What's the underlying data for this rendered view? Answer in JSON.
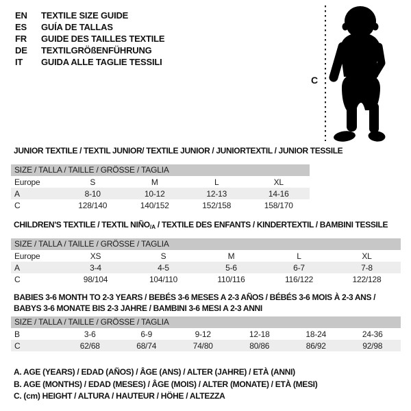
{
  "page": {
    "background": "#ffffff",
    "text_color": "#111111",
    "header_bar_color": "#c7c7c7",
    "stripe_row_color": "#ededed",
    "silhouette_color": "#000000"
  },
  "language_guide": {
    "items": [
      {
        "code": "EN",
        "label": "TEXTILE SIZE GUIDE"
      },
      {
        "code": "ES",
        "label": "GUÍA DE TALLAS"
      },
      {
        "code": "FR",
        "label": "GUIDE DES TAILLES TEXTILE"
      },
      {
        "code": "DE",
        "label": "TEXTILGRÖßENFÜHRUNG"
      },
      {
        "code": "IT",
        "label": "GUIDA ALLE TAGLIE TESSILI"
      }
    ]
  },
  "figure": {
    "icon": "baby-silhouette",
    "measure_label": "C"
  },
  "tables": [
    {
      "title": "JUNIOR TEXTILE / TEXTIL JUNIOR/ TEXTILE JUNIOR / JUNIORTEXTIL / JUNIOR TESSILE",
      "size_header": "SIZE / TALLA / TAILLE / GRÖSSE / TAGLIA",
      "rows": [
        {
          "label": "Europe",
          "values": [
            "S",
            "M",
            "L",
            "XL"
          ]
        },
        {
          "label": "A",
          "values": [
            "8-10",
            "10-12",
            "12-13",
            "14-16"
          ]
        },
        {
          "label": "C",
          "values": [
            "128/140",
            "140/152",
            "152/158",
            "158/170"
          ]
        }
      ]
    },
    {
      "title_parts": {
        "before": "CHILDREN'S TEXTILE / TEXTIL NIÑO",
        "sub": "/A",
        "after": " / TEXTILE DES ENFANTS / KINDERTEXTIL / BAMBINI TESSILE"
      },
      "size_header": "SIZE / TALLA / TAILLE / GRÖSSE / TAGLIA",
      "rows": [
        {
          "label": "Europe",
          "values": [
            "XS",
            "S",
            "M",
            "L",
            "XL"
          ]
        },
        {
          "label": "A",
          "values": [
            "3-4",
            "4-5",
            "5-6",
            "6-7",
            "7-8"
          ]
        },
        {
          "label": "C",
          "values": [
            "98/104",
            "104/110",
            "110/116",
            "116/122",
            "122/128"
          ]
        }
      ]
    },
    {
      "title_lines": [
        "BABIES 3-6 MONTH TO 2-3 YEARS / BEBÉS 3-6 MESES A 2-3 AÑOS / BÉBÉS 3-6 MOIS À 2-3 ANS /",
        "BABYS 3-6 MONATE BIS 2-3 JAHRE / BAMBINI 3-6 MESI A 2-3 ANNI"
      ],
      "size_header": "SIZE / TALLA / TAILLE / GRÖSSE / TAGLIA",
      "rows": [
        {
          "label": "B",
          "values": [
            "3-6",
            "6-9",
            "9-12",
            "12-18",
            "18-24",
            "24-36"
          ]
        },
        {
          "label": "C",
          "values": [
            "62/68",
            "68/74",
            "74/80",
            "80/86",
            "86/92",
            "92/98"
          ]
        }
      ]
    }
  ],
  "footnotes": [
    "A. AGE (YEARS) / EDAD (AÑOS) / ÂGE (ANS) / ALTER (JAHRE) / ETÀ (ANNI)",
    "B. AGE (MONTHS) / EDAD (MESES) / ÂGE (MOIS) / ALTER (MONATE) / ETÀ (MESI)",
    "C. (cm) HEIGHT / ALTURA / HAUTEUR / HÖHE / ALTEZZA"
  ]
}
